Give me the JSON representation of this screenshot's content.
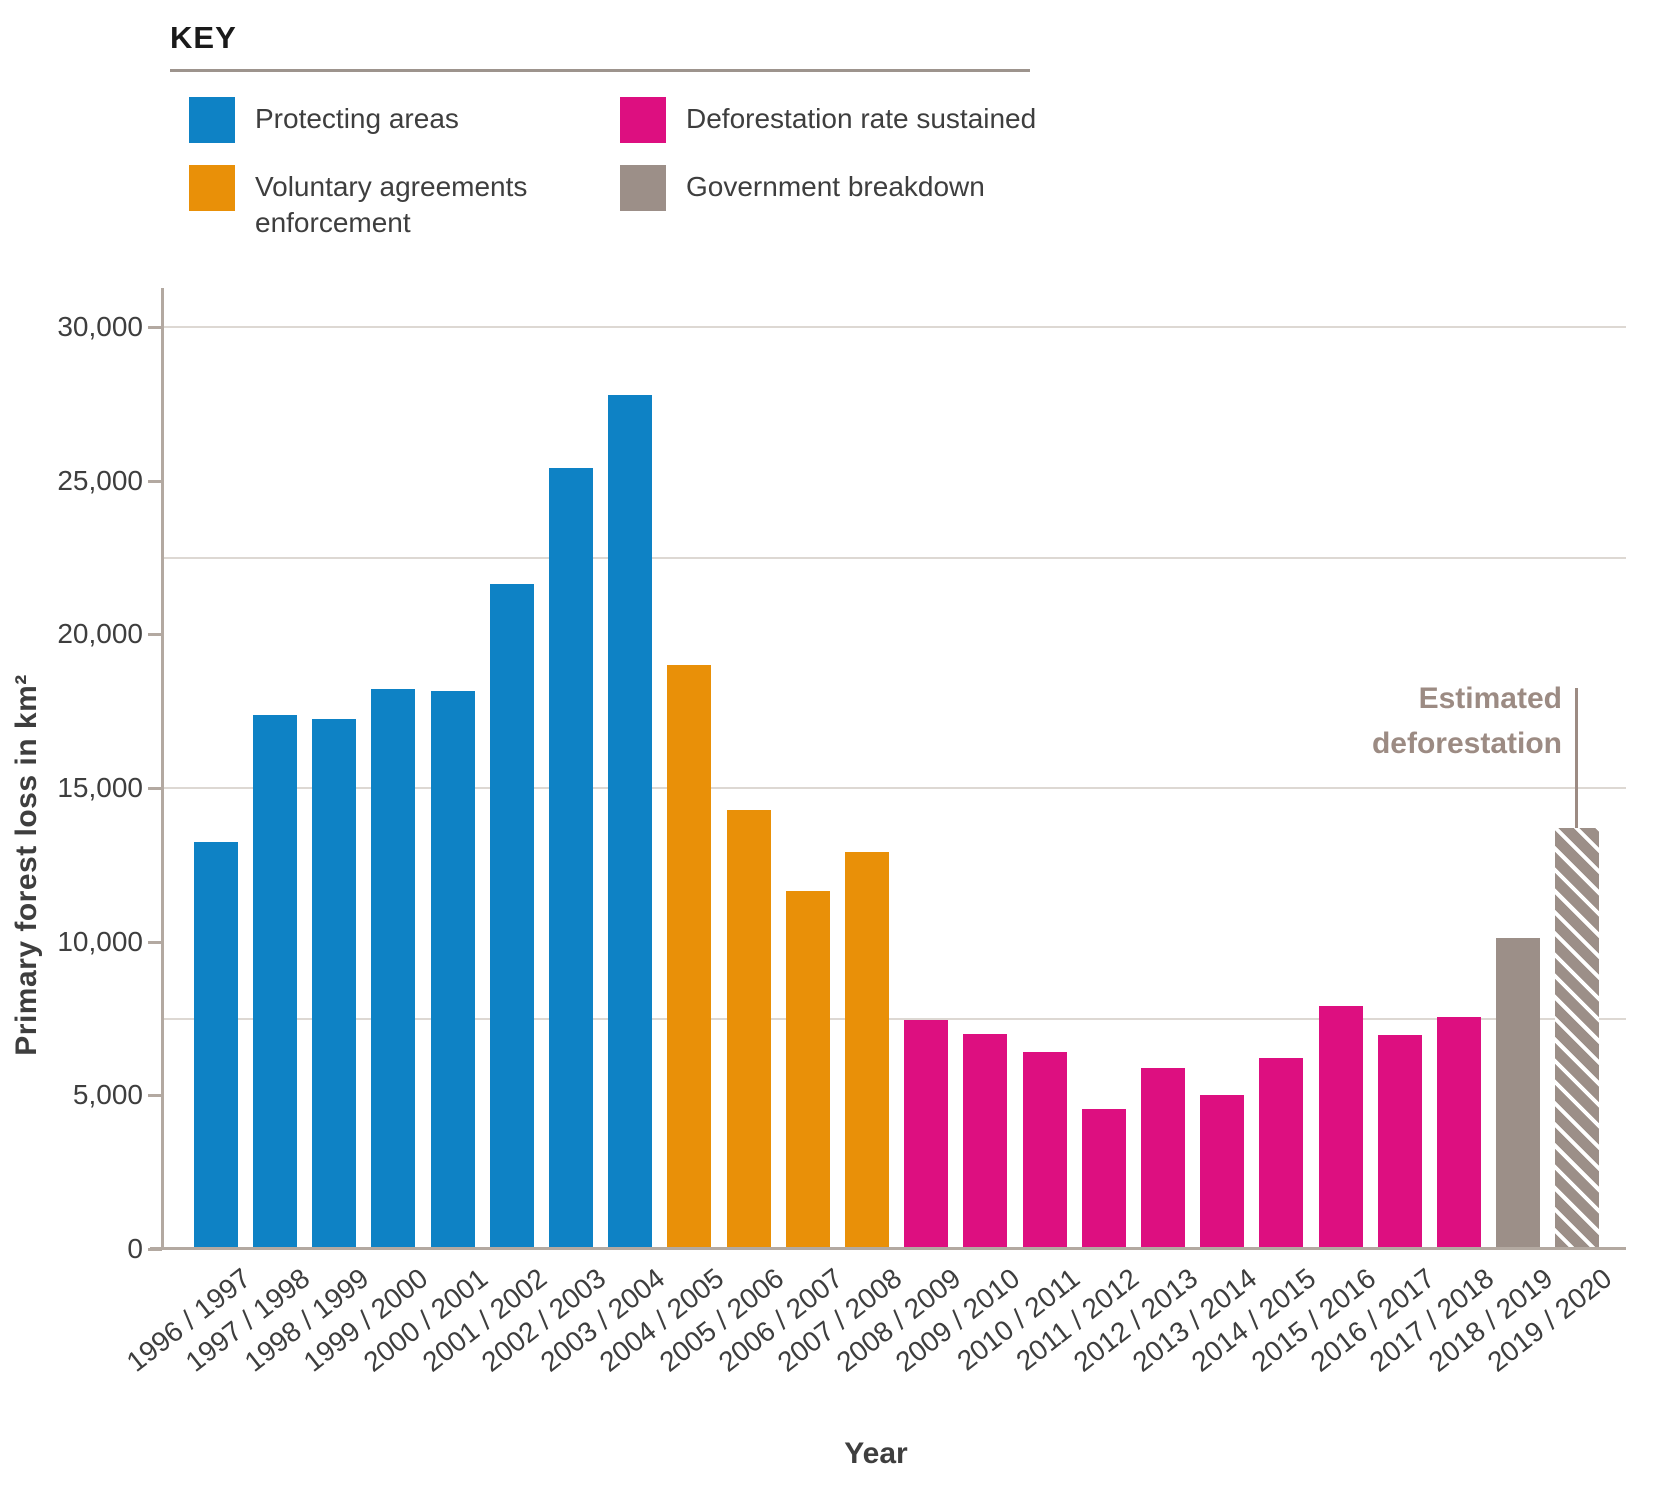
{
  "legend": {
    "title": "KEY",
    "items": [
      {
        "id": "protecting",
        "label": "Protecting areas",
        "color": "#0e82c5"
      },
      {
        "id": "sustained",
        "label": "Deforestation rate sustained",
        "color": "#dd0f80"
      },
      {
        "id": "voluntary",
        "label": "Voluntary agreements enforcement",
        "color": "#e99008"
      },
      {
        "id": "government",
        "label": "Government breakdown",
        "color": "#9c8f88"
      }
    ]
  },
  "annotation": {
    "line1": "Estimated",
    "line2": "deforestation",
    "color": "#9c8b83",
    "target_category": "2019 / 2020"
  },
  "chart_data": {
    "type": "bar",
    "title": "",
    "xlabel": "Year",
    "ylabel": "Primary forest loss in km²",
    "ylim": [
      0,
      30000
    ],
    "grid": "horizontal",
    "gridlines_at": [
      7500,
      15000,
      22500,
      30000
    ],
    "legend_position": "top-left",
    "yticks": [
      {
        "value": 0,
        "label": "0"
      },
      {
        "value": 5000,
        "label": "5,000"
      },
      {
        "value": 10000,
        "label": "10,000"
      },
      {
        "value": 15000,
        "label": "15,000"
      },
      {
        "value": 20000,
        "label": "20,000"
      },
      {
        "value": 25000,
        "label": "25,000"
      },
      {
        "value": 30000,
        "label": "30,000"
      }
    ],
    "categories": [
      "1996 / 1997",
      "1997 / 1998",
      "1998 / 1999",
      "1999 / 2000",
      "2000 / 2001",
      "2001 / 2002",
      "2002 / 2003",
      "2003 / 2004",
      "2004 / 2005",
      "2005 / 2006",
      "2006 / 2007",
      "2007 / 2008",
      "2008 / 2009",
      "2009 / 2010",
      "2010 / 2011",
      "2011 / 2012",
      "2012 / 2013",
      "2013 / 2014",
      "2014 / 2015",
      "2015 / 2016",
      "2016 / 2017",
      "2017 / 2018",
      "2018 / 2019",
      "2019 / 2020"
    ],
    "values": [
      13227,
      17383,
      17259,
      18226,
      18165,
      21651,
      25396,
      27772,
      19014,
      14286,
      11651,
      12911,
      7464,
      7000,
      6418,
      4571,
      5891,
      5012,
      6207,
      7893,
      6947,
      7536,
      10129,
      13700
    ],
    "groups": [
      "protecting",
      "protecting",
      "protecting",
      "protecting",
      "protecting",
      "protecting",
      "protecting",
      "protecting",
      "voluntary",
      "voluntary",
      "voluntary",
      "voluntary",
      "sustained",
      "sustained",
      "sustained",
      "sustained",
      "sustained",
      "sustained",
      "sustained",
      "sustained",
      "sustained",
      "sustained",
      "government",
      "estimated"
    ],
    "group_colors": {
      "protecting": "#0e82c5",
      "voluntary": "#e99008",
      "sustained": "#dd0f80",
      "government": "#9c8f88",
      "estimated": "#9c8f88"
    },
    "hatched_groups": [
      "estimated"
    ]
  }
}
